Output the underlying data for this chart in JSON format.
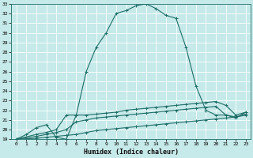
{
  "xlabel": "Humidex (Indice chaleur)",
  "xlim": [
    -0.5,
    23.5
  ],
  "ylim": [
    19,
    33
  ],
  "xticks": [
    0,
    1,
    2,
    3,
    4,
    5,
    6,
    7,
    8,
    9,
    10,
    11,
    12,
    13,
    14,
    15,
    16,
    17,
    18,
    19,
    20,
    21,
    22,
    23
  ],
  "yticks": [
    19,
    20,
    21,
    22,
    23,
    24,
    25,
    26,
    27,
    28,
    29,
    30,
    31,
    32,
    33
  ],
  "bg_color": "#c6e9e9",
  "grid_color": "#ffffff",
  "line_color": "#1e6e68",
  "lines": [
    {
      "x": [
        0,
        1,
        2,
        3,
        4,
        5,
        6,
        7,
        8,
        9,
        10,
        11,
        12,
        13,
        14,
        15,
        16,
        17,
        18,
        19,
        20,
        21,
        22,
        23
      ],
      "y": [
        19,
        19.5,
        20.2,
        20.5,
        19.2,
        19.0,
        21.5,
        26.0,
        28.5,
        30.0,
        32.0,
        32.3,
        32.8,
        33.0,
        32.5,
        31.8,
        31.5,
        28.5,
        24.5,
        22.0,
        21.5,
        21.5,
        21.2,
        21.8
      ]
    },
    {
      "x": [
        0,
        2,
        3,
        4,
        5,
        6,
        7,
        8,
        9,
        10,
        11,
        12,
        13,
        14,
        15,
        16,
        17,
        18,
        19,
        20,
        21,
        22,
        23
      ],
      "y": [
        19,
        19.5,
        19.7,
        20.0,
        21.5,
        21.5,
        21.5,
        21.6,
        21.7,
        21.8,
        22.0,
        22.1,
        22.2,
        22.3,
        22.4,
        22.5,
        22.6,
        22.7,
        22.8,
        22.9,
        22.5,
        21.5,
        21.8
      ]
    },
    {
      "x": [
        0,
        2,
        3,
        4,
        5,
        6,
        7,
        8,
        9,
        10,
        11,
        12,
        13,
        14,
        15,
        16,
        17,
        18,
        19,
        20,
        21,
        22,
        23
      ],
      "y": [
        19,
        19.3,
        19.5,
        19.7,
        20.0,
        20.8,
        21.0,
        21.2,
        21.3,
        21.4,
        21.5,
        21.6,
        21.7,
        21.8,
        21.9,
        22.0,
        22.1,
        22.2,
        22.3,
        22.4,
        21.5,
        21.3,
        21.6
      ]
    },
    {
      "x": [
        0,
        2,
        3,
        4,
        5,
        6,
        7,
        8,
        9,
        10,
        11,
        12,
        13,
        14,
        15,
        16,
        17,
        18,
        19,
        20,
        21,
        22,
        23
      ],
      "y": [
        19,
        19.1,
        19.2,
        19.3,
        19.4,
        19.5,
        19.7,
        19.9,
        20.0,
        20.1,
        20.2,
        20.3,
        20.4,
        20.5,
        20.6,
        20.7,
        20.8,
        20.9,
        21.0,
        21.1,
        21.2,
        21.3,
        21.5
      ]
    }
  ]
}
